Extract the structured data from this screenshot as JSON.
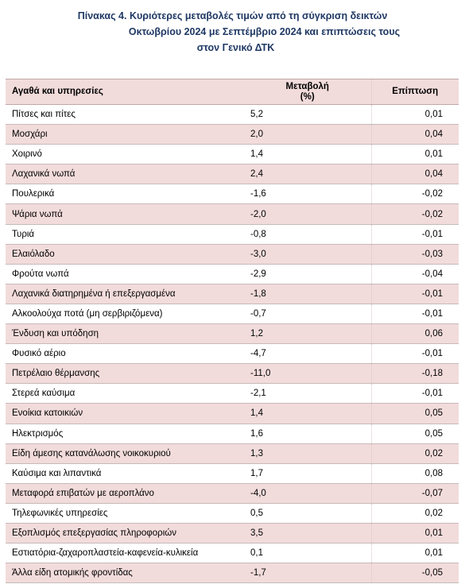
{
  "title": {
    "line1": "Πίνακας  4. Κυριότερες μεταβολές τιμών από τη σύγκριση δεικτών",
    "line2": "Οκτωβρίου 2024 με Σεπτέμβριο 2024 και επιπτώσεις τους",
    "line3": "στον Γενικό ΔΤΚ"
  },
  "table": {
    "headers": {
      "col1": "Αγαθά και υπηρεσίες",
      "col2_line1": "Μεταβολή",
      "col2_line2": "(%)",
      "col3": "Επίπτωση"
    },
    "rows": [
      {
        "item": "Πίτσες και πίτες",
        "change": "5,2",
        "impact": "0,01"
      },
      {
        "item": "Μοσχάρι",
        "change": "2,0",
        "impact": "0,04"
      },
      {
        "item": "Χοιρινό",
        "change": "1,4",
        "impact": "0,01"
      },
      {
        "item": "Λαχανικά νωπά",
        "change": "2,4",
        "impact": "0,04"
      },
      {
        "item": "Πουλερικά",
        "change": "-1,6",
        "impact": "-0,02"
      },
      {
        "item": "Ψάρια νωπά",
        "change": "-2,0",
        "impact": "-0,02"
      },
      {
        "item": "Τυριά",
        "change": "-0,8",
        "impact": "-0,01"
      },
      {
        "item": "Ελαιόλαδο",
        "change": "-3,0",
        "impact": "-0,03"
      },
      {
        "item": "Φρούτα νωπά",
        "change": "-2,9",
        "impact": "-0,04"
      },
      {
        "item": "Λαχανικά διατηρημένα ή επεξεργασμένα",
        "change": "-1,8",
        "impact": "-0,01"
      },
      {
        "item": "Αλκοολούχα ποτά (μη σερβιριζόμενα)",
        "change": "-0,7",
        "impact": "-0,01"
      },
      {
        "item": "Ένδυση και υπόδηση",
        "change": "1,2",
        "impact": "0,06"
      },
      {
        "item": "Φυσικό αέριο",
        "change": "-4,7",
        "impact": "-0,01"
      },
      {
        "item": "Πετρέλαιο θέρμανσης",
        "change": "-11,0",
        "impact": "-0,18"
      },
      {
        "item": "Στερεά καύσιμα",
        "change": "-2,1",
        "impact": "-0,01"
      },
      {
        "item": "Ενοίκια κατοικιών",
        "change": "1,4",
        "impact": "0,05"
      },
      {
        "item": "Ηλεκτρισμός",
        "change": "1,6",
        "impact": "0,05"
      },
      {
        "item": "Είδη άμεσης κατανάλωσης νοικοκυριού",
        "change": "1,3",
        "impact": "0,02"
      },
      {
        "item": "Καύσιμα και λιπαντικά",
        "change": "1,7",
        "impact": "0,08"
      },
      {
        "item": "Μεταφορά επιβατών με αεροπλάνο",
        "change": "-4,0",
        "impact": "-0,07"
      },
      {
        "item": "Τηλεφωνικές υπηρεσίες",
        "change": "0,5",
        "impact": "0,02"
      },
      {
        "item": "Εξοπλισμός επεξεργασίας πληροφοριών",
        "change": "3,5",
        "impact": "0,01"
      },
      {
        "item": "Εστιατόρια-ζαχαροπλαστεία-καφενεία-κυλικεία",
        "change": "0,1",
        "impact": "0,01"
      },
      {
        "item": "Άλλα είδη ατομικής φροντίδας",
        "change": "-1,7",
        "impact": "-0,05"
      }
    ]
  }
}
